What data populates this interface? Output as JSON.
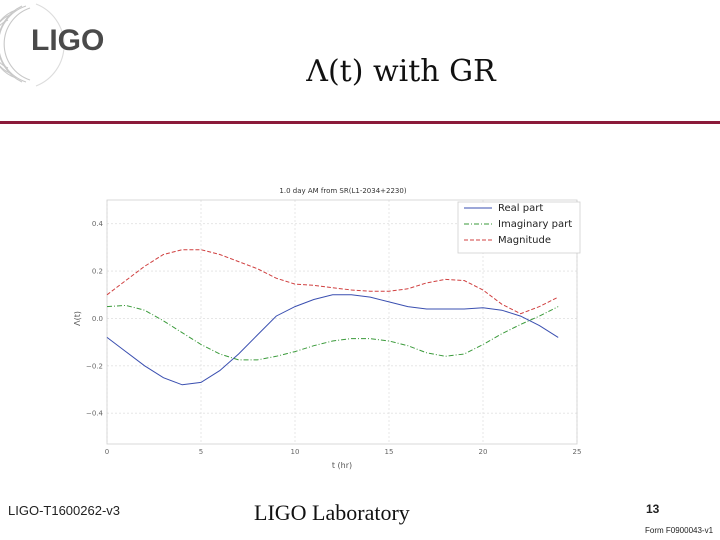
{
  "header": {
    "logo_text": "LIGO",
    "slide_title": "Λ(t) with GR"
  },
  "footer": {
    "doc_id": "LIGO-T1600262-v3",
    "lab": "LIGO Laboratory",
    "page": "13",
    "form": "Form F0900043-v1"
  },
  "colors": {
    "accent_rule": "#8b1a3a",
    "real": "#3a4fb0",
    "imag": "#3a9a3a",
    "mag": "#d04040"
  },
  "chart_data": {
    "type": "line",
    "title": "1.0 day AM from SR(L1-2034+2230)",
    "xlabel": "t (hr)",
    "ylabel": "Λ(t)",
    "xlim": [
      0,
      25
    ],
    "ylim": [
      -0.53,
      0.5
    ],
    "xticks": [
      0,
      5,
      10,
      15,
      20,
      25
    ],
    "xtick_labels": [
      "0",
      "5",
      "10",
      "15",
      "20",
      "25"
    ],
    "yticks": [
      -0.4,
      -0.2,
      0.0,
      0.2,
      0.4
    ],
    "ytick_labels": [
      "−0.4",
      "−0.2",
      "0.0",
      "0.2",
      "0.4"
    ],
    "grid": true,
    "legend_position": "top-right",
    "series": [
      {
        "name": "Real part",
        "style": "solid",
        "color": "#3a4fb0",
        "x": [
          0,
          1,
          2,
          3,
          4,
          5,
          6,
          7,
          8,
          9,
          10,
          11,
          12,
          13,
          14,
          15,
          16,
          17,
          18,
          19,
          20,
          21,
          22,
          23,
          24
        ],
        "y": [
          -0.08,
          -0.14,
          -0.2,
          -0.25,
          -0.28,
          -0.27,
          -0.22,
          -0.15,
          -0.07,
          0.01,
          0.05,
          0.08,
          0.1,
          0.1,
          0.09,
          0.07,
          0.05,
          0.04,
          0.04,
          0.04,
          0.045,
          0.035,
          0.01,
          -0.03,
          -0.08
        ]
      },
      {
        "name": "Imaginary part",
        "style": "dashdot",
        "color": "#3a9a3a",
        "x": [
          0,
          1,
          2,
          3,
          4,
          5,
          6,
          7,
          8,
          9,
          10,
          11,
          12,
          13,
          14,
          15,
          16,
          17,
          18,
          19,
          20,
          21,
          22,
          23,
          24
        ],
        "y": [
          0.05,
          0.055,
          0.035,
          -0.01,
          -0.06,
          -0.11,
          -0.15,
          -0.175,
          -0.175,
          -0.16,
          -0.14,
          -0.115,
          -0.095,
          -0.085,
          -0.085,
          -0.095,
          -0.115,
          -0.145,
          -0.16,
          -0.15,
          -0.11,
          -0.065,
          -0.025,
          0.01,
          0.05
        ]
      },
      {
        "name": "Magnitude",
        "style": "dashed",
        "color": "#d04040",
        "x": [
          0,
          1,
          2,
          3,
          4,
          5,
          6,
          7,
          8,
          9,
          10,
          11,
          12,
          13,
          14,
          15,
          16,
          17,
          18,
          19,
          20,
          21,
          22,
          23,
          24
        ],
        "y": [
          0.1,
          0.16,
          0.22,
          0.27,
          0.29,
          0.29,
          0.27,
          0.24,
          0.21,
          0.17,
          0.145,
          0.14,
          0.13,
          0.12,
          0.115,
          0.115,
          0.125,
          0.15,
          0.165,
          0.16,
          0.12,
          0.06,
          0.02,
          0.05,
          0.09
        ]
      }
    ]
  }
}
